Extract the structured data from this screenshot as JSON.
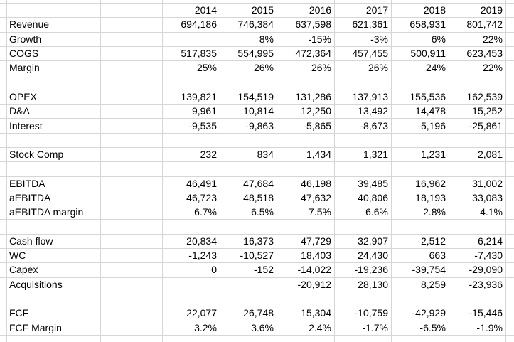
{
  "app": {
    "name": "spreadsheet-financial-model"
  },
  "colors": {
    "gridline": "#d6d6d6",
    "background": "#ffffff",
    "text": "#000000"
  },
  "table": {
    "columns": [
      "2014",
      "2015",
      "2016",
      "2017",
      "2018",
      "2019"
    ],
    "rows": [
      {
        "label": "Revenue",
        "values": [
          "694,186",
          "746,384",
          "637,598",
          "621,361",
          "658,931",
          "801,742"
        ]
      },
      {
        "label": "Growth",
        "values": [
          "",
          "8%",
          "-15%",
          "-3%",
          "6%",
          "22%"
        ]
      },
      {
        "label": "COGS",
        "values": [
          "517,835",
          "554,995",
          "472,364",
          "457,455",
          "500,911",
          "623,453"
        ]
      },
      {
        "label": "Margin",
        "values": [
          "25%",
          "26%",
          "26%",
          "26%",
          "24%",
          "22%"
        ]
      },
      {
        "label": "",
        "values": [
          "",
          "",
          "",
          "",
          "",
          ""
        ]
      },
      {
        "label": "OPEX",
        "values": [
          "139,821",
          "154,519",
          "131,286",
          "137,913",
          "155,536",
          "162,539"
        ]
      },
      {
        "label": "D&A",
        "values": [
          "9,961",
          "10,814",
          "12,250",
          "13,492",
          "14,478",
          "15,252"
        ]
      },
      {
        "label": "Interest",
        "values": [
          "-9,535",
          "-9,863",
          "-5,865",
          "-8,673",
          "-5,196",
          "-25,861"
        ]
      },
      {
        "label": "",
        "values": [
          "",
          "",
          "",
          "",
          "",
          ""
        ]
      },
      {
        "label": "Stock Comp",
        "values": [
          "232",
          "834",
          "1,434",
          "1,321",
          "1,231",
          "2,081"
        ]
      },
      {
        "label": "",
        "values": [
          "",
          "",
          "",
          "",
          "",
          ""
        ]
      },
      {
        "label": "EBITDA",
        "values": [
          "46,491",
          "47,684",
          "46,198",
          "39,485",
          "16,962",
          "31,002"
        ]
      },
      {
        "label": "aEBITDA",
        "values": [
          "46,723",
          "48,518",
          "47,632",
          "40,806",
          "18,193",
          "33,083"
        ]
      },
      {
        "label": "aEBITDA margin",
        "values": [
          "6.7%",
          "6.5%",
          "7.5%",
          "6.6%",
          "2.8%",
          "4.1%"
        ]
      },
      {
        "label": "",
        "values": [
          "",
          "",
          "",
          "",
          "",
          ""
        ]
      },
      {
        "label": "Cash flow",
        "values": [
          "20,834",
          "16,373",
          "47,729",
          "32,907",
          "-2,512",
          "6,214"
        ]
      },
      {
        "label": "WC",
        "values": [
          "-1,243",
          "-10,527",
          "18,403",
          "24,430",
          "663",
          "-7,430"
        ]
      },
      {
        "label": "Capex",
        "values": [
          "0",
          "-152",
          "-14,022",
          "-19,236",
          "-39,754",
          "-29,090"
        ]
      },
      {
        "label": "Acquisitions",
        "values": [
          "",
          "",
          "-20,912",
          "28,130",
          "8,259",
          "-23,936"
        ]
      },
      {
        "label": "",
        "values": [
          "",
          "",
          "",
          "",
          "",
          ""
        ]
      },
      {
        "label": "FCF",
        "values": [
          "22,077",
          "26,748",
          "15,304",
          "-10,759",
          "-42,929",
          "-15,446"
        ]
      },
      {
        "label": "FCF Margin",
        "values": [
          "3.2%",
          "3.6%",
          "2.4%",
          "-1.7%",
          "-6.5%",
          "-1.9%"
        ]
      }
    ]
  }
}
